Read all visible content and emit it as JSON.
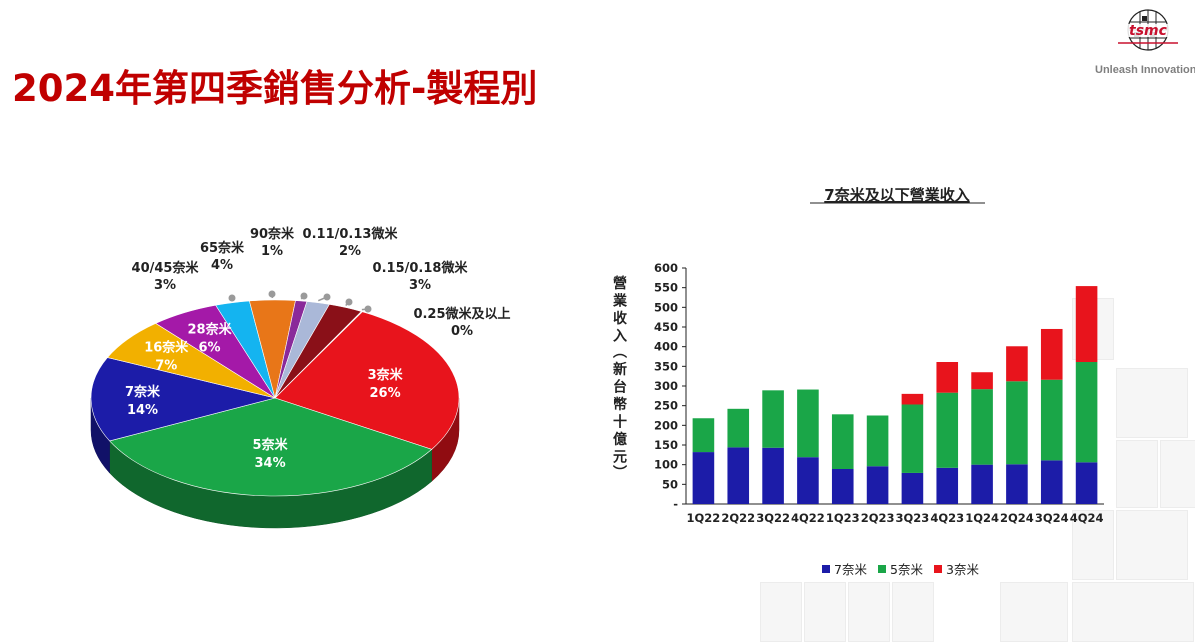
{
  "slide": {
    "title": "2024年第四季銷售分析-製程別",
    "logo_text": "tsmc",
    "tagline": "Unleash Innovation"
  },
  "chart_data": [
    {
      "type": "pie",
      "categories": [
        "3奈米",
        "5奈米",
        "7奈米",
        "16奈米",
        "28奈米",
        "40/45奈米",
        "65奈米",
        "90奈米",
        "0.11/0.13微米",
        "0.15/0.18微米",
        "0.25微米及以上"
      ],
      "values": [
        26,
        34,
        14,
        7,
        6,
        3,
        4,
        1,
        2,
        3,
        0
      ],
      "labels": [
        "26%",
        "34%",
        "14%",
        "7%",
        "6%",
        "3%",
        "4%",
        "1%",
        "2%",
        "3%",
        "0%"
      ],
      "colors": [
        "#e8141c",
        "#1aa648",
        "#1c1ca8",
        "#f2b000",
        "#a419a8",
        "#14b4f0",
        "#e87618",
        "#8a2a9a",
        "#aab8d8",
        "#8a1018",
        "#d0d0d0"
      ]
    },
    {
      "type": "bar",
      "stacked": true,
      "title": "7奈米及以下營業收入",
      "ylabel": "營業收入(新台幣十億元)",
      "categories": [
        "1Q22",
        "2Q22",
        "3Q22",
        "4Q22",
        "1Q23",
        "2Q23",
        "3Q23",
        "4Q23",
        "1Q24",
        "2Q24",
        "3Q24",
        "4Q24"
      ],
      "ylim": [
        0,
        600
      ],
      "yticks": [
        "-",
        "50",
        "100",
        "150",
        "200",
        "250",
        "300",
        "350",
        "400",
        "450",
        "500",
        "550",
        "600"
      ],
      "series": [
        {
          "name": "7奈米",
          "color": "#1c1ca8",
          "values": [
            132,
            144,
            143,
            119,
            89,
            96,
            79,
            92,
            100,
            101,
            111,
            106
          ]
        },
        {
          "name": "5奈米",
          "color": "#1aa648",
          "values": [
            86,
            98,
            146,
            172,
            139,
            129,
            174,
            191,
            192,
            211,
            205,
            255
          ]
        },
        {
          "name": "3奈米",
          "color": "#e8141c",
          "values": [
            0,
            0,
            0,
            0,
            0,
            0,
            27,
            78,
            43,
            89,
            129,
            193
          ]
        }
      ],
      "legend": "bottom"
    }
  ]
}
